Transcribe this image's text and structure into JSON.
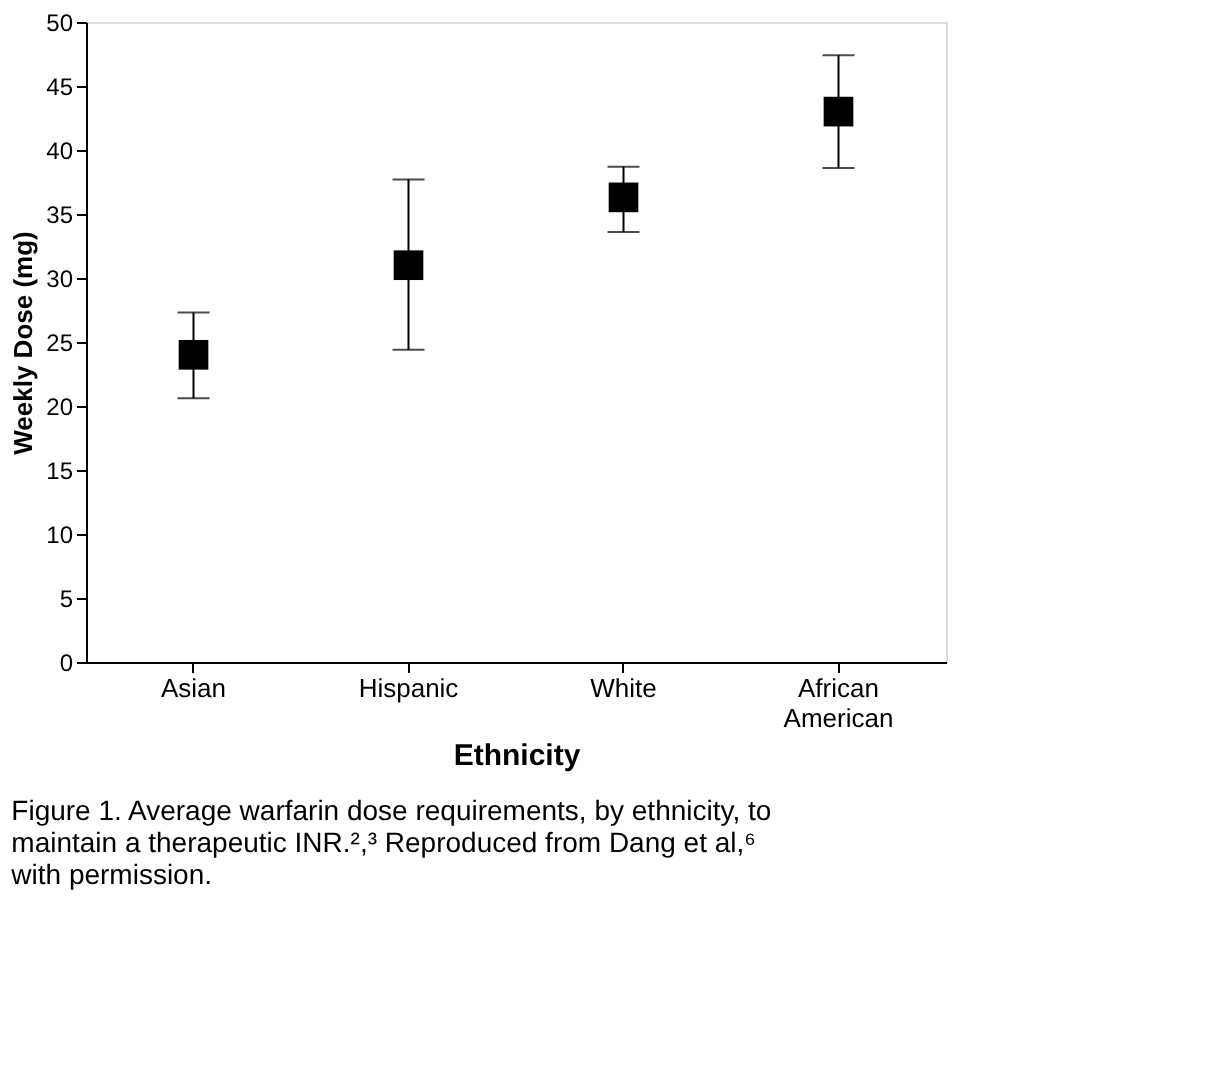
{
  "chart_data": {
    "type": "scatter",
    "xlabel": "Ethnicity",
    "ylabel": "Weekly Dose (mg)",
    "categories": [
      "Asian",
      "Hispanic",
      "White",
      "African American"
    ],
    "series": [
      {
        "color": "#000000",
        "values": [
          24.0,
          31.0,
          36.3,
          43.0
        ],
        "errors": [
          [
            20.6,
            27.3
          ],
          [
            24.4,
            37.7
          ],
          [
            33.6,
            38.7
          ],
          [
            38.6,
            47.4
          ]
        ]
      }
    ],
    "ylim": [
      0,
      50
    ],
    "yticks": [
      0,
      5,
      10,
      15,
      20,
      25,
      30,
      35,
      40,
      45,
      50
    ],
    "marker": "square",
    "grid": false,
    "annotations": [
      "Figure 1. Average warfarin dose requirements, by ethnicity, to maintain a therapeutic INR.²,³ Reproduced from Dang et al,⁶ with permission."
    ]
  }
}
